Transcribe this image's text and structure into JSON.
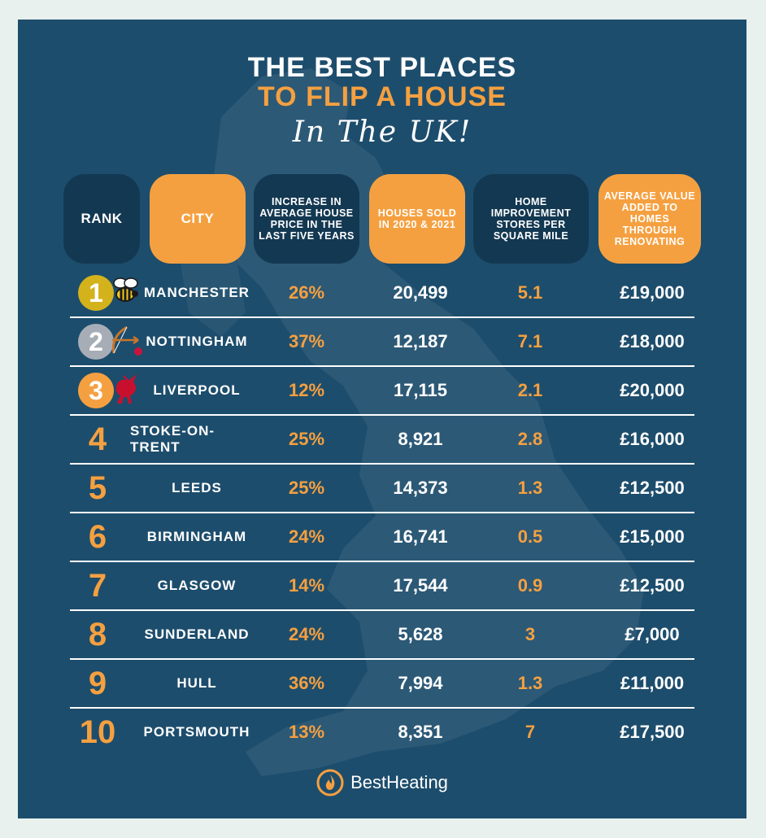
{
  "colors": {
    "background": "#1d4d6c",
    "accent": "#f5a040",
    "header_dark": "#133852",
    "gold": "#d4b21c",
    "silver": "#a7adb6",
    "bronze": "#f5a040"
  },
  "title": {
    "line1": "THE BEST PLACES",
    "line2": "TO FLIP A HOUSE",
    "subtitle": "In The UK!"
  },
  "headers": {
    "rank": "RANK",
    "city": "CITY",
    "increase": "INCREASE IN AVERAGE HOUSE PRICE IN THE LAST FIVE YEARS",
    "sold": "HOUSES SOLD IN 2020 & 2021",
    "stores": "HOME IMPROVEMENT STORES PER SQUARE MILE",
    "value": "AVERAGE VALUE ADDED TO HOMES THROUGH RENOVATING"
  },
  "rows": [
    {
      "rank": "1",
      "city": "MANCHESTER",
      "increase": "26%",
      "sold": "20,499",
      "stores": "5.1",
      "value": "£19,000",
      "emblem": "bee-icon"
    },
    {
      "rank": "2",
      "city": "NOTTINGHAM",
      "increase": "37%",
      "sold": "12,187",
      "stores": "7.1",
      "value": "£18,000",
      "emblem": "bow-arrow-icon"
    },
    {
      "rank": "3",
      "city": "LIVERPOOL",
      "increase": "12%",
      "sold": "17,115",
      "stores": "2.1",
      "value": "£20,000",
      "emblem": "liver-bird-icon"
    },
    {
      "rank": "4",
      "city": "STOKE-ON-TRENT",
      "increase": "25%",
      "sold": "8,921",
      "stores": "2.8",
      "value": "£16,000"
    },
    {
      "rank": "5",
      "city": "LEEDS",
      "increase": "25%",
      "sold": "14,373",
      "stores": "1.3",
      "value": "£12,500"
    },
    {
      "rank": "6",
      "city": "BIRMINGHAM",
      "increase": "24%",
      "sold": "16,741",
      "stores": "0.5",
      "value": "£15,000"
    },
    {
      "rank": "7",
      "city": "GLASGOW",
      "increase": "14%",
      "sold": "17,544",
      "stores": "0.9",
      "value": "£12,500"
    },
    {
      "rank": "8",
      "city": "SUNDERLAND",
      "increase": "24%",
      "sold": "5,628",
      "stores": "3",
      "value": "£7,000"
    },
    {
      "rank": "9",
      "city": "HULL",
      "increase": "36%",
      "sold": "7,994",
      "stores": "1.3",
      "value": "£11,000"
    },
    {
      "rank": "10",
      "city": "PORTSMOUTH",
      "increase": "13%",
      "sold": "8,351",
      "stores": "7",
      "value": "£17,500"
    }
  ],
  "logo": {
    "text": "BestHeating",
    "icon": "flame-icon"
  }
}
